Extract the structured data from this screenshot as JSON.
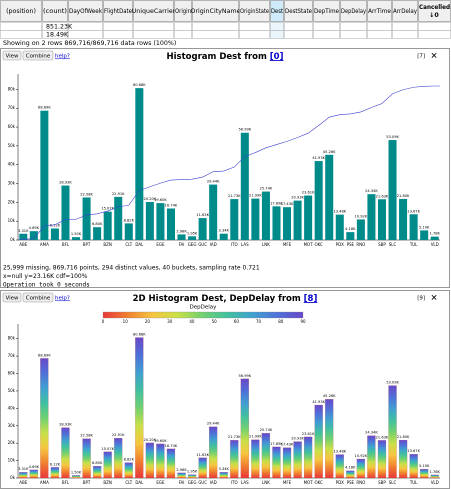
{
  "table": {
    "columns": [
      "(position)",
      "(count)",
      "DayOfWeek",
      "FlightDate",
      "UniqueCarrier",
      "Origin",
      "OriginCityName",
      "OriginState",
      "Dest",
      "DestState",
      "DepTime",
      "DepDelay",
      "ArrTime",
      "ArrDelay",
      "Cancelled"
    ],
    "sort": "↓0",
    "counts": [
      "851.23K",
      "18.49K"
    ],
    "status": "Showing on 2 rows 869,716/869,716 data rows (100%)"
  },
  "panels": [
    {
      "buttons": [
        "View",
        "Combine",
        "help?"
      ],
      "title": "Histogram Dest from ",
      "source": "[0]",
      "id": "[7]",
      "close": "✕",
      "summary": [
        "25,999 missing, 869,716 points, 294 distinct values, 40 buckets, sampling rate 0.721",
        "x=null            y=23.16K            cdf=100%",
        "Operation took 0 seconds"
      ],
      "chart_data": {
        "type": "bar",
        "color": "#008b8b",
        "cdf_color": "#4040d0",
        "categories": [
          "ABE",
          null,
          "AMA",
          null,
          "BFL",
          null,
          "BPT",
          null,
          "BZN",
          null,
          "CLT",
          "DAL",
          null,
          "EGE",
          null,
          "FAI",
          "GEG",
          "GUC",
          "IAD",
          null,
          "ITO",
          "LAS",
          null,
          "LNK",
          null,
          "MFE",
          null,
          "MOT",
          "OKC",
          null,
          "PDX",
          "PSE",
          "RNO",
          null,
          "SBP",
          "SLC",
          null,
          "TUL",
          null,
          "VLD"
        ],
        "values": [
          3310,
          4690,
          68690,
          6120,
          28930,
          1500,
          22580,
          6800,
          15070,
          22910,
          8820,
          80680,
          20200,
          19600,
          16740,
          2960,
          1950,
          11630,
          29440,
          3340,
          21730,
          56990,
          21990,
          25740,
          17890,
          17430,
          20930,
          23610,
          41930,
          45260,
          13480,
          4180,
          10920,
          24340,
          21630,
          53090,
          21800,
          13670,
          5100,
          1780
        ],
        "value_labels": [
          "3.31K",
          "4.69K",
          "68.69K",
          "6.12K",
          "28.93K",
          "1.50K",
          "22.58K",
          "6.80K",
          "15.07K",
          "22.91K",
          "8.82K",
          "80.68K",
          "20.20K",
          "19.60K",
          "16.74K",
          "2.96K",
          "1.95K",
          "11.63K",
          "29.44K",
          "3.34K",
          "21.73K",
          "56.99K",
          "21.99K",
          "25.74K",
          "17.89K",
          "17.43K",
          "20.93K",
          "23.61K",
          "41.93K",
          "45.26K",
          "13.48K",
          "4.18K",
          "10.92K",
          "24.34K",
          "21.63K",
          "53.09K",
          "21.80K",
          "13.67K",
          "5.10K",
          "1.78K"
        ],
        "ylim": [
          0,
          85000
        ],
        "yticks": [
          {
            "value": 0,
            "label": "0k"
          },
          {
            "value": 10000,
            "label": "10k"
          },
          {
            "value": 20000,
            "label": "20k"
          },
          {
            "value": 30000,
            "label": "30k"
          },
          {
            "value": 40000,
            "label": "40k"
          },
          {
            "value": 50000,
            "label": "50k"
          },
          {
            "value": 60000,
            "label": "60k"
          },
          {
            "value": 70000,
            "label": "70k"
          },
          {
            "value": 80000,
            "label": "80k"
          }
        ]
      }
    },
    {
      "buttons": [
        "View",
        "Combine",
        "help?"
      ],
      "title": "2D Histogram Dest, DepDelay from ",
      "source": "[8]",
      "id": "[9]",
      "close": "✕",
      "colorbar": {
        "title": "DepDelay",
        "ticks": [
          0,
          10,
          20,
          30,
          40,
          50,
          60,
          70,
          80,
          90
        ],
        "colors": [
          "#e8383a",
          "#f08030",
          "#f6c640",
          "#c8e048",
          "#70d070",
          "#40c0a0",
          "#40a0d0",
          "#5070d8",
          "#6848c8"
        ]
      },
      "chart_data": {
        "type": "bar",
        "categories": [
          "ABE",
          null,
          "AMA",
          null,
          "BFL",
          null,
          "BPT",
          null,
          "BZN",
          null,
          "CLT",
          "DAL",
          null,
          "EGE",
          null,
          "FAI",
          "GEG",
          "GUC",
          "IAD",
          null,
          "ITO",
          "LAS",
          null,
          "LNK",
          null,
          "MFE",
          null,
          "MOT",
          "OKC",
          null,
          "PDX",
          "PSE",
          "RNO",
          null,
          "SBP",
          "SLC",
          null,
          "TUL",
          null,
          "VLD"
        ],
        "values": [
          3310,
          4690,
          68690,
          6120,
          28930,
          1500,
          22580,
          6800,
          15070,
          22910,
          8820,
          80680,
          20200,
          19600,
          16740,
          2960,
          1950,
          11630,
          29440,
          3340,
          21730,
          56990,
          21990,
          25740,
          17890,
          17430,
          20930,
          23610,
          41930,
          45260,
          13480,
          4180,
          10920,
          24340,
          21630,
          53090,
          21800,
          13670,
          5100,
          1780
        ],
        "value_labels": [
          "3.31K",
          "4.69K",
          "68.69K",
          "6.12K",
          "28.93K",
          "1.50K",
          "22.58K",
          "6.80K",
          "15.07K",
          "22.91K",
          "8.82K",
          "80.68K",
          "20.20K",
          "19.60K",
          "16.74K",
          "2.96K",
          "1.95K",
          "11.63K",
          "29.44K",
          "3.34K",
          "21.73K",
          "56.99K",
          "21.99K",
          "25.74K",
          "17.89K",
          "17.43K",
          "20.93K",
          "23.61K",
          "41.93K",
          "45.26K",
          "13.48K",
          "4.18K",
          "10.92K",
          "24.34K",
          "21.63K",
          "53.09K",
          "21.80K",
          "13.67K",
          "5.10K",
          "1.78K"
        ],
        "ylim": [
          0,
          85000
        ],
        "yticks": [
          {
            "value": 0,
            "label": "0k"
          },
          {
            "value": 10000,
            "label": "10k"
          },
          {
            "value": 20000,
            "label": "20k"
          },
          {
            "value": 30000,
            "label": "30k"
          },
          {
            "value": 40000,
            "label": "40k"
          },
          {
            "value": 50000,
            "label": "50k"
          },
          {
            "value": 60000,
            "label": "60k"
          },
          {
            "value": 70000,
            "label": "70k"
          },
          {
            "value": 80000,
            "label": "80k"
          }
        ]
      }
    }
  ]
}
